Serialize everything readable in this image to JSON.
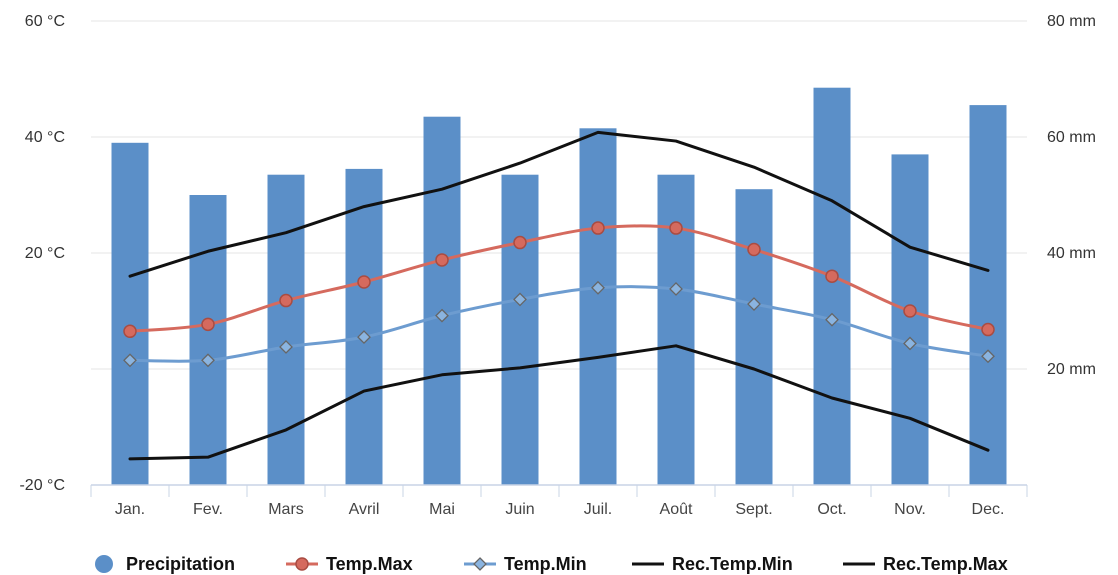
{
  "chart_data": {
    "type": "bar",
    "title": "",
    "categories": [
      "Jan.",
      "Fev.",
      "Mars",
      "Avril",
      "Mai",
      "Juin",
      "Juil.",
      "Août",
      "Sept.",
      "Oct.",
      "Nov.",
      "Dec."
    ],
    "left_axis": {
      "unit": "°C",
      "ticks": [
        "60 °C",
        "40 °C",
        "20 °C",
        "",
        "-20 °C"
      ],
      "range": [
        -20,
        60
      ],
      "tick_values": [
        60,
        40,
        20,
        0,
        -20
      ]
    },
    "right_axis": {
      "unit": "mm",
      "ticks": [
        "80 mm",
        "60 mm",
        "40 mm",
        "20 mm"
      ],
      "range": [
        0,
        80
      ],
      "tick_values": [
        80,
        60,
        40,
        20
      ]
    },
    "grid": true,
    "legend_position": "bottom",
    "series": [
      {
        "name": "Precipitation",
        "type": "bar",
        "axis": "right",
        "color": "#5b8fc8",
        "values": [
          59,
          50,
          53.5,
          54.5,
          63.5,
          53.5,
          61.5,
          53.5,
          51,
          68.5,
          57,
          65.5
        ]
      },
      {
        "name": "Temp.Max",
        "type": "line",
        "axis": "left",
        "color": "#d56a5e",
        "marker": "circle",
        "values": [
          6.5,
          7.7,
          11.8,
          15,
          18.8,
          21.8,
          24.3,
          24.3,
          20.6,
          16,
          10,
          6.8
        ]
      },
      {
        "name": "Temp.Min",
        "type": "line",
        "axis": "left",
        "color": "#6d9cd0",
        "marker": "diamond",
        "values": [
          1.5,
          1.5,
          3.8,
          5.5,
          9.2,
          12,
          14,
          13.8,
          11.2,
          8.5,
          4.4,
          2.2
        ]
      },
      {
        "name": "Rec.Temp.Min",
        "type": "line",
        "axis": "left",
        "color": "#111111",
        "values": [
          -15.5,
          -15.2,
          -10.5,
          -3.8,
          -1,
          0.2,
          2,
          4,
          0,
          -5,
          -8.5,
          -14
        ]
      },
      {
        "name": "Rec.Temp.Max",
        "type": "line",
        "axis": "left",
        "color": "#111111",
        "values": [
          16,
          20.3,
          23.5,
          28,
          31,
          35.5,
          40.8,
          39.3,
          34.8,
          29,
          21,
          17
        ]
      }
    ]
  }
}
